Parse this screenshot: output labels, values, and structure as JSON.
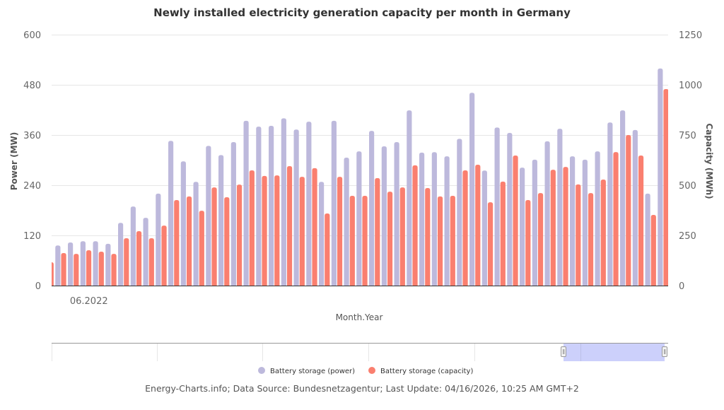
{
  "chart_data": {
    "type": "bar",
    "title": "Newly installed electricity generation capacity per month in Germany",
    "xlabel": "Month.Year",
    "x_tick_labels": [
      {
        "label": "06.2022",
        "index": 3
      }
    ],
    "y_left": {
      "label": "Power (MW)",
      "lim": [
        0,
        600
      ],
      "ticks": [
        "0",
        "120",
        "240",
        "360",
        "480",
        "600"
      ]
    },
    "y_right": {
      "label": "Capacity (MWh)",
      "lim": [
        0,
        1250
      ],
      "ticks": [
        "0",
        "250",
        "500",
        "750",
        "1000",
        "1250"
      ]
    },
    "grid": true,
    "legend_position": "bottom",
    "series": [
      {
        "name": "Battery storage (power)",
        "axis": "left",
        "color": "#bdb9dc",
        "values": [
          null,
          96,
          103,
          106,
          106,
          100,
          150,
          189,
          162,
          220,
          346,
          297,
          248,
          334,
          312,
          343,
          394,
          380,
          382,
          400,
          373,
          392,
          248,
          394,
          306,
          321,
          370,
          333,
          343,
          419,
          318,
          319,
          309,
          351,
          461,
          275,
          378,
          365,
          282,
          301,
          345,
          375,
          309,
          301,
          321,
          390,
          419,
          372,
          220,
          519
        ]
      },
      {
        "name": "Battery storage (capacity)",
        "axis": "right",
        "color": "#fa7f6f",
        "values": [
          116,
          162,
          158,
          176,
          169,
          158,
          236,
          271,
          236,
          299,
          426,
          444,
          373,
          489,
          440,
          503,
          574,
          546,
          549,
          595,
          542,
          585,
          359,
          542,
          447,
          447,
          535,
          468,
          489,
          599,
          486,
          444,
          447,
          574,
          602,
          415,
          518,
          648,
          426,
          461,
          577,
          591,
          504,
          461,
          528,
          665,
          750,
          648,
          352,
          979
        ]
      }
    ]
  },
  "footer": "Energy-Charts.info; Data Source: Bundesnetzagentur; Last Update: 04/16/2026, 10:25 AM GMT+2"
}
